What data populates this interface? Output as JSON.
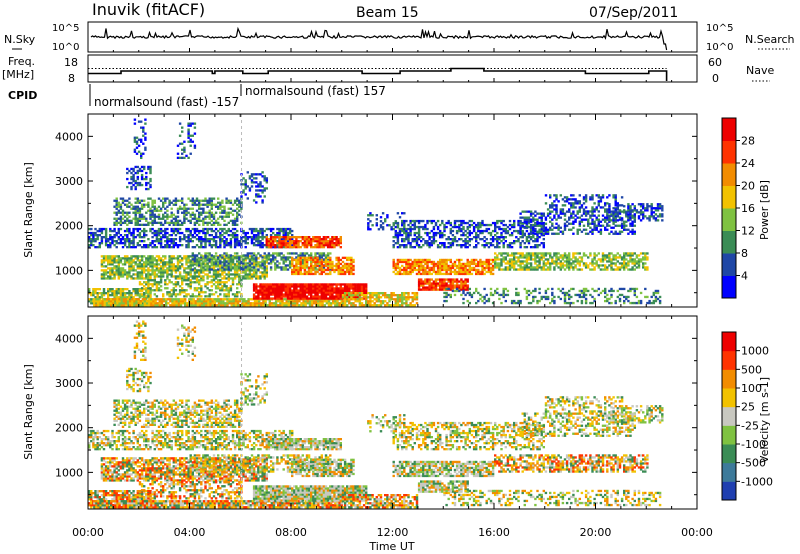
{
  "header": {
    "station": "Inuvik (fitACF)",
    "beam": "Beam 15",
    "date": "07/Sep/2011"
  },
  "strip_labels": {
    "nsky": "N.Sky",
    "nsearch": "N.Search",
    "freq_line1": "Freq.",
    "freq_line2": "[MHz]",
    "nave": "Nave",
    "cpid": "CPID",
    "exp1": "normalsound (fast) -157",
    "exp2": "normalsound (fast) 157"
  },
  "chart_data": [
    {
      "type": "line",
      "name": "noise-strip",
      "y_left_ticks": [
        "10^5",
        "10^0"
      ],
      "y_right_ticks": [
        "10^5",
        "10^0"
      ],
      "series": [
        {
          "name": "N.Sky",
          "style": "solid"
        },
        {
          "name": "N.Search",
          "style": "dotted"
        }
      ]
    },
    {
      "type": "line",
      "name": "freq-nave-strip",
      "y_left_ticks": [
        "18",
        "8"
      ],
      "y_right_ticks": [
        "60",
        "0"
      ],
      "x": [
        0,
        1.1,
        1.3,
        4.6,
        4.9,
        5.0,
        5.9,
        6.1,
        6.8,
        7.1,
        10.6,
        10.8,
        12.3,
        12.5,
        14.3,
        14.6,
        15.6,
        15.8,
        19.4,
        19.6,
        22.1,
        22.3,
        22.8
      ],
      "freq_mhz": [
        11,
        11,
        12,
        12,
        11,
        12,
        12,
        11,
        11,
        12,
        12,
        11,
        12,
        12,
        13,
        13,
        12,
        12,
        12,
        11,
        12,
        12,
        0
      ],
      "nave": [
        30,
        30,
        30,
        30,
        30,
        30,
        30,
        30,
        30,
        30,
        30,
        30,
        30,
        30,
        30,
        30,
        30,
        30,
        30,
        30,
        30,
        30,
        30
      ]
    },
    {
      "type": "heatmap",
      "name": "power",
      "ylabel": "Slant Range [km]",
      "yticks": [
        1000,
        2000,
        3000,
        4000
      ],
      "ylim": [
        180,
        4500
      ],
      "xlim": [
        0,
        24
      ],
      "colorbar_label": "Power [dB]",
      "colorbar_ticks": [
        "28",
        "24",
        "20",
        "16",
        "12",
        "8",
        "4"
      ],
      "colors": [
        "#0000ff",
        "#1f47a6",
        "#3a8c55",
        "#7fc241",
        "#f2c200",
        "#f28c00",
        "#ff3300",
        "#ee0000"
      ]
    },
    {
      "type": "heatmap",
      "name": "velocity",
      "ylabel": "Slant Range [km]",
      "yticks": [
        1000,
        2000,
        3000,
        4000
      ],
      "ylim": [
        180,
        4500
      ],
      "xlim": [
        0,
        24
      ],
      "xlabel": "Time UT",
      "xtick_labels": [
        "00:00",
        "04:00",
        "08:00",
        "12:00",
        "16:00",
        "20:00",
        "00:00"
      ],
      "colorbar_label": "Velocity [m s-1]",
      "colorbar_ticks": [
        "1000",
        "500",
        "100",
        "25",
        "-25",
        "-100",
        "-500",
        "-1000"
      ],
      "colors": [
        "#1f3fb0",
        "#3d7a9a",
        "#3a8c55",
        "#7fc241",
        "#c8c8c0",
        "#f2c200",
        "#f28c00",
        "#ff3300",
        "#ee0000"
      ]
    }
  ]
}
